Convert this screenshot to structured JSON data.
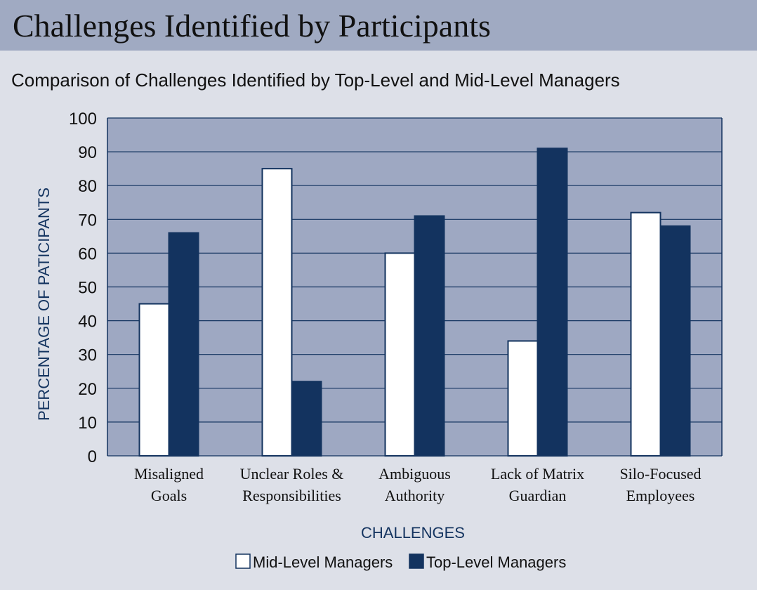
{
  "chart_data": {
    "type": "bar",
    "title": "Challenges Identified by Participants",
    "subtitle": "Comparison of Challenges Identified by Top-Level and Mid-Level Managers",
    "x_label": "CHALLENGES",
    "y_label": "PERCENTAGE OF PATICIPANTS",
    "categories": [
      "Misaligned\nGoals",
      "Unclear Roles &\nResponsibilities",
      "Ambiguous\nAuthority",
      "Lack of Matrix\nGuardian",
      "Silo-Focused\nEmployees"
    ],
    "series": [
      {
        "name": "Mid-Level Managers",
        "color": "#ffffff",
        "values": [
          45,
          85,
          60,
          34,
          72
        ]
      },
      {
        "name": "Top-Level Managers",
        "color": "#13335f",
        "values": [
          66,
          22,
          71,
          91,
          68
        ]
      }
    ],
    "ylim": [
      0,
      100
    ],
    "yticks": [
      0,
      10,
      20,
      30,
      40,
      50,
      60,
      70,
      80,
      90,
      100
    ],
    "grid": true
  }
}
